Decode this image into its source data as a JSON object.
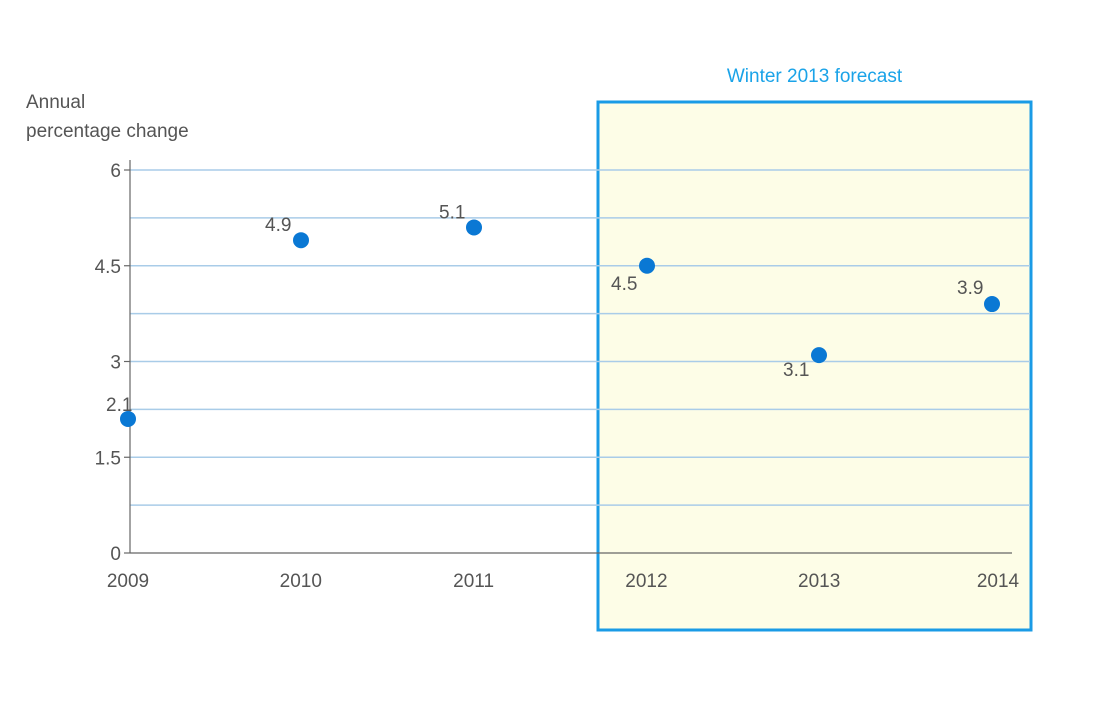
{
  "chart_data": {
    "type": "scatter",
    "ylabel": [
      "Annual",
      "percentage change"
    ],
    "xlabel": "",
    "title": "",
    "x": [
      "2009",
      "2010",
      "2011",
      "2012",
      "2013",
      "2014"
    ],
    "values": [
      2.1,
      4.9,
      5.1,
      4.5,
      3.1,
      3.9
    ],
    "data_labels": [
      "2.1",
      "4.9",
      "5.1",
      "4.5",
      "3.1",
      "3.9"
    ],
    "ylim": [
      0,
      6
    ],
    "yticks": [
      "0",
      "1.5",
      "3",
      "4.5",
      "6"
    ],
    "grid": true,
    "annotation": {
      "label": "Winter 2013 forecast",
      "covers": [
        "2012",
        "2013",
        "2014"
      ]
    },
    "colors": {
      "marker": "#0a78d4",
      "grid": "#a9cce8",
      "forecast_border": "#1a9be6",
      "forecast_fill": "#fdfde7",
      "forecast_text": "#1aa3e8",
      "axis": "#666666",
      "text": "#555555"
    }
  }
}
